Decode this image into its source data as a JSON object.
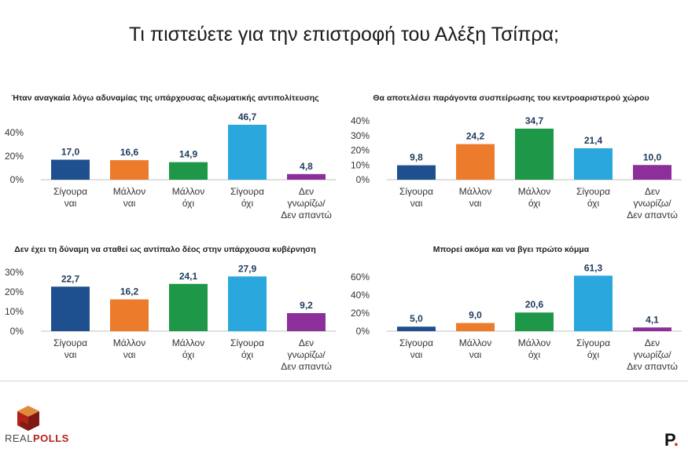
{
  "main_title": "Τι πιστεύετε για την επιστροφή του Αλέξη Τσίπρα;",
  "colors": [
    "#1e4f8e",
    "#ec7b2c",
    "#1e9748",
    "#2aa8dd",
    "#8c2f9b"
  ],
  "chart_data": [
    {
      "type": "bar",
      "title": "Ήταν αναγκαία λόγω αδυναμίας της υπάρχουσας αξιωματικής αντιπολίτευσης",
      "categories": [
        [
          "Σίγουρα",
          "ναι"
        ],
        [
          "Μάλλον",
          "ναι"
        ],
        [
          "Μάλλον",
          "όχι"
        ],
        [
          "Σίγουρα",
          "όχι"
        ],
        [
          "Δεν",
          "γνωρίζω/",
          "Δεν απαντώ"
        ]
      ],
      "values": [
        17.0,
        16.6,
        14.9,
        46.7,
        4.8
      ],
      "value_labels": [
        "17,0",
        "16,6",
        "14,9",
        "46,7",
        "4,8"
      ],
      "ylim": [
        0,
        50
      ],
      "yticks": [
        0,
        20,
        40
      ],
      "ytick_labels": [
        "0%",
        "20%",
        "40%"
      ]
    },
    {
      "type": "bar",
      "title": "Θα αποτελέσει παράγοντα συσπείρωσης του κεντροαριστερού χώρου",
      "categories": [
        [
          "Σίγουρα",
          "ναι"
        ],
        [
          "Μάλλον",
          "ναι"
        ],
        [
          "Μάλλον",
          "όχι"
        ],
        [
          "Σίγουρα",
          "όχι"
        ],
        [
          "Δεν",
          "γνωρίζω/",
          "Δεν απαντώ"
        ]
      ],
      "values": [
        9.8,
        24.2,
        34.7,
        21.4,
        10.0
      ],
      "value_labels": [
        "9,8",
        "24,2",
        "34,7",
        "21,4",
        "10,0"
      ],
      "ylim": [
        0,
        40
      ],
      "yticks": [
        0,
        10,
        20,
        30,
        40
      ],
      "ytick_labels": [
        "0%",
        "10%",
        "20%",
        "30%",
        "40%"
      ]
    },
    {
      "type": "bar",
      "title": "Δεν έχει τη δύναμη να σταθεί ως αντίπαλο δέος στην υπάρχουσα κυβέρνηση",
      "categories": [
        [
          "Σίγουρα",
          "ναι"
        ],
        [
          "Μάλλον",
          "ναι"
        ],
        [
          "Μάλλον",
          "όχι"
        ],
        [
          "Σίγουρα",
          "όχι"
        ],
        [
          "Δεν",
          "γνωρίζω/",
          "Δεν απαντώ"
        ]
      ],
      "values": [
        22.7,
        16.2,
        24.1,
        27.9,
        9.2
      ],
      "value_labels": [
        "22,7",
        "16,2",
        "24,1",
        "27,9",
        "9,2"
      ],
      "ylim": [
        0,
        30
      ],
      "yticks": [
        0,
        10,
        20,
        30
      ],
      "ytick_labels": [
        "0%",
        "10%",
        "20%",
        "30%"
      ]
    },
    {
      "type": "bar",
      "title": "Μπορεί ακόμα και να βγει πρώτο κόμμα",
      "categories": [
        [
          "Σίγουρα",
          "ναι"
        ],
        [
          "Μάλλον",
          "ναι"
        ],
        [
          "Μάλλον",
          "όχι"
        ],
        [
          "Σίγουρα",
          "όχι"
        ],
        [
          "Δεν",
          "γνωρίζω/",
          "Δεν απαντώ"
        ]
      ],
      "values": [
        5.0,
        9.0,
        20.6,
        61.3,
        4.1
      ],
      "value_labels": [
        "5,0",
        "9,0",
        "20,6",
        "61,3",
        "4,1"
      ],
      "ylim": [
        0,
        65
      ],
      "yticks": [
        0,
        20,
        40,
        60
      ],
      "ytick_labels": [
        "0%",
        "20%",
        "40%",
        "60%"
      ]
    }
  ],
  "logo": {
    "name_part1": "REAL",
    "name_part2": "POLLS"
  },
  "brand_mark": {
    "letter": "P",
    "dot": "."
  }
}
